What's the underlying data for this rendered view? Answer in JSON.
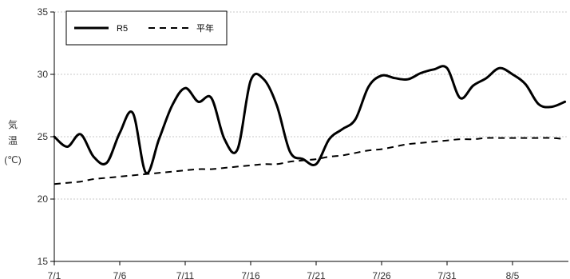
{
  "chart_data": {
    "type": "line",
    "title": "",
    "xlabel": "",
    "ylabel": "気温(℃)",
    "ylabel_parts": [
      "気",
      "温",
      "(℃)"
    ],
    "ylim": [
      15,
      35
    ],
    "yticks": [
      15,
      20,
      25,
      30,
      35
    ],
    "grid": true,
    "legend_position": "top-left",
    "x": [
      "7/1",
      "7/2",
      "7/3",
      "7/4",
      "7/5",
      "7/6",
      "7/7",
      "7/8",
      "7/9",
      "7/10",
      "7/11",
      "7/12",
      "7/13",
      "7/14",
      "7/15",
      "7/16",
      "7/17",
      "7/18",
      "7/19",
      "7/20",
      "7/21",
      "7/22",
      "7/23",
      "7/24",
      "7/25",
      "7/26",
      "7/27",
      "7/28",
      "7/29",
      "7/30",
      "7/31",
      "8/1",
      "8/2",
      "8/3",
      "8/4",
      "8/5",
      "8/6",
      "8/7",
      "8/8",
      "8/9"
    ],
    "xticks": [
      "7/1",
      "7/6",
      "7/11",
      "7/16",
      "7/21",
      "7/26",
      "7/31",
      "8/5"
    ],
    "series": [
      {
        "name": "R5",
        "style": "solid",
        "color": "#000000",
        "values": [
          25.0,
          24.2,
          25.2,
          23.4,
          22.9,
          25.3,
          26.9,
          22.1,
          24.8,
          27.5,
          28.9,
          27.8,
          28.1,
          24.8,
          24.0,
          29.5,
          29.6,
          27.5,
          23.8,
          23.2,
          22.8,
          24.8,
          25.6,
          26.4,
          29.0,
          29.9,
          29.7,
          29.6,
          30.1,
          30.4,
          30.5,
          28.1,
          29.1,
          29.7,
          30.5,
          30.0,
          29.2,
          27.6,
          27.4,
          27.8
        ]
      },
      {
        "name": "平年",
        "style": "dashed",
        "color": "#000000",
        "values": [
          21.2,
          21.3,
          21.4,
          21.6,
          21.7,
          21.8,
          21.9,
          22.0,
          22.1,
          22.2,
          22.3,
          22.4,
          22.4,
          22.5,
          22.6,
          22.7,
          22.8,
          22.8,
          23.0,
          23.1,
          23.2,
          23.4,
          23.5,
          23.7,
          23.9,
          24.0,
          24.2,
          24.4,
          24.5,
          24.6,
          24.7,
          24.8,
          24.8,
          24.9,
          24.9,
          24.9,
          24.9,
          24.9,
          24.9,
          24.8
        ]
      }
    ]
  }
}
